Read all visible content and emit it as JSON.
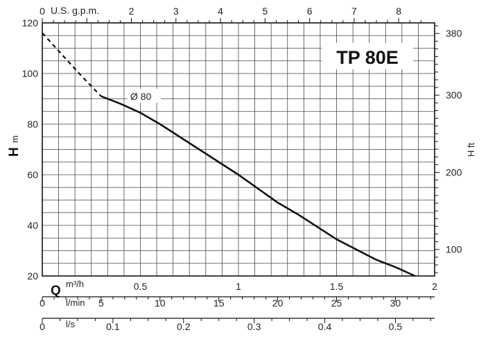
{
  "chart_data": {
    "type": "line",
    "title": "TP 80E",
    "ylabel_main": "H",
    "ylabel_unit": "m",
    "ylabel_right": "H ft",
    "ylim": [
      20,
      120
    ],
    "xlim": [
      0,
      2
    ],
    "grid": true,
    "left_ticks": [
      "20",
      "40",
      "60",
      "80",
      "100",
      "120"
    ],
    "right_axis": {
      "label": "H ft",
      "ticks": [
        "100",
        "200",
        "300",
        "380"
      ],
      "values": [
        100,
        200,
        300,
        380
      ]
    },
    "top_axis": {
      "unit": "U.S. g.p.m.",
      "first": "0",
      "ticks": [
        "2",
        "3",
        "4",
        "5",
        "6",
        "7",
        "8"
      ],
      "values": [
        2,
        3,
        4,
        5,
        6,
        7,
        8
      ]
    },
    "bottom_axes": [
      {
        "symbol": "Q",
        "unit": "m³/h",
        "first": "",
        "ticks": [
          "0.5",
          "1",
          "1.5",
          "2"
        ],
        "values": [
          0.5,
          1,
          1.5,
          2
        ]
      },
      {
        "unit": "l/min",
        "first": "0",
        "ticks": [
          "5",
          "10",
          "15",
          "20",
          "25",
          "30"
        ],
        "values": [
          5,
          10,
          15,
          20,
          25,
          30
        ]
      },
      {
        "unit": "l/s",
        "first": "0",
        "ticks": [
          "0.1",
          "0.2",
          "0.3",
          "0.4",
          "0.5"
        ],
        "values": [
          0.1,
          0.2,
          0.3,
          0.4,
          0.5
        ]
      }
    ],
    "series": [
      {
        "name": "Ø 80",
        "x": [
          0.3,
          0.4,
          0.5,
          0.6,
          0.7,
          0.8,
          0.9,
          1.0,
          1.1,
          1.2,
          1.3,
          1.4,
          1.5,
          1.6,
          1.7,
          1.8,
          1.9
        ],
        "y": [
          91,
          88,
          84.5,
          80,
          75,
          70,
          65,
          60,
          54.5,
          49,
          44.5,
          39.5,
          34.5,
          30.5,
          26.5,
          23.5,
          20
        ],
        "dashed_x": [
          0,
          0.1,
          0.2,
          0.3
        ],
        "dashed_y": [
          116,
          107.5,
          99,
          91
        ]
      }
    ]
  }
}
